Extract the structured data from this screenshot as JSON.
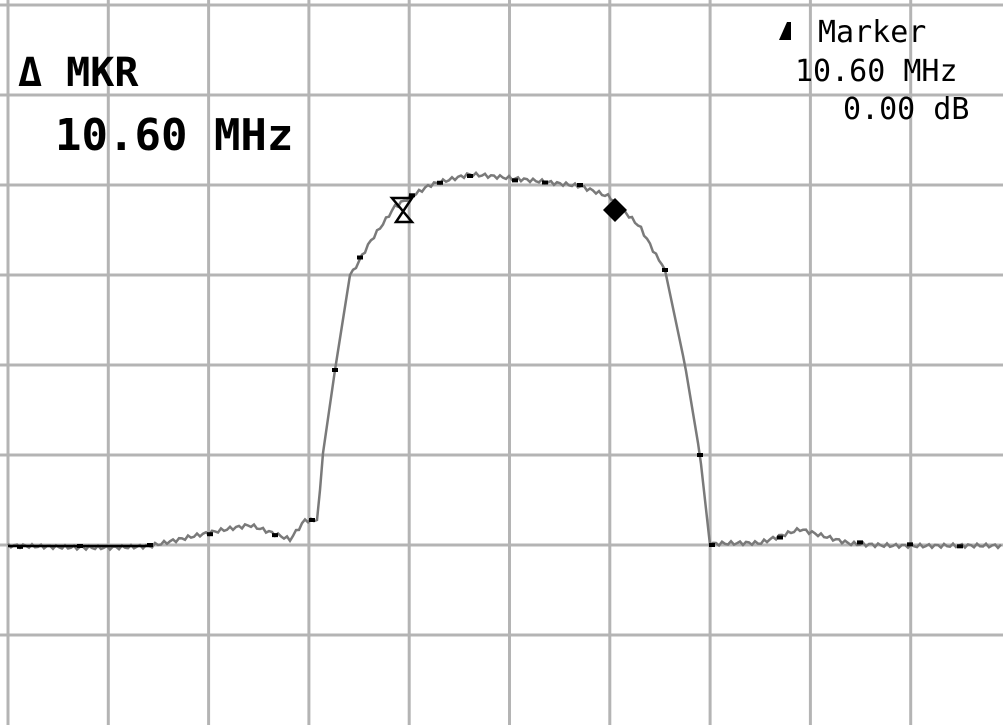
{
  "display": {
    "marker_mode": "Δ MKR",
    "marker_freq": "10.60 MHz",
    "annotation": {
      "title": "Marker",
      "freq": "10.60 MHz",
      "level": "0.00 dB"
    }
  }
}
